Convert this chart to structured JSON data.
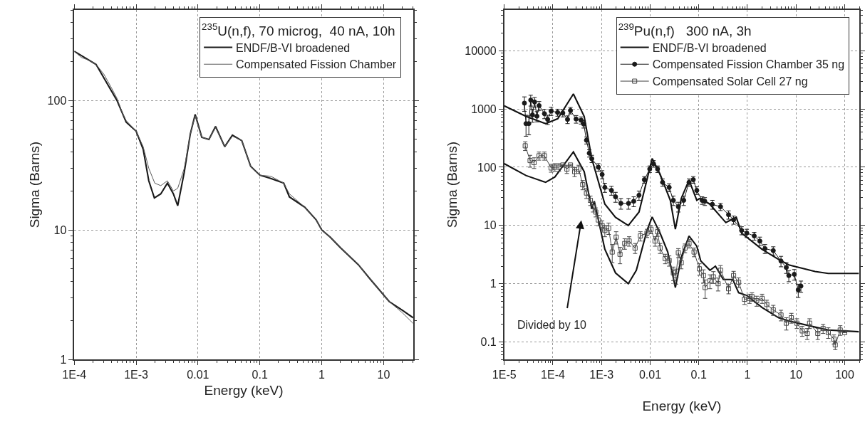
{
  "chart_data": [
    {
      "type": "line",
      "xlabel": "Energy (keV)",
      "ylabel": "Sigma (Barns)",
      "legend_title": "$^{235}$U(n,f), 70 microg,  40 nA, 10h",
      "legend": "top right",
      "log": "xy",
      "grid": true,
      "marker": "none",
      "line_style": "solid",
      "xlim": [
        0.0001,
        30
      ],
      "xticks": [
        {
          "value": 0.0001,
          "label": "1E-4"
        },
        {
          "value": 0.001,
          "label": "1E-3"
        },
        0.01,
        0.1,
        1,
        10
      ],
      "ylim": [
        1,
        500
      ],
      "yticks": [
        1,
        10,
        100
      ],
      "series": [
        {
          "name": "ENDF/B-VI broadened",
          "color": "#1a1a1a",
          "x": [
            0.0001,
            0.000225,
            0.00049,
            0.00069,
            0.001,
            0.0013,
            0.0016,
            0.00197,
            0.0025,
            0.0032,
            0.004,
            0.0047,
            0.006,
            0.0075,
            0.009,
            0.0115,
            0.015,
            0.0192,
            0.027,
            0.036,
            0.051,
            0.071,
            0.1,
            0.15,
            0.243,
            0.3,
            0.53,
            0.81,
            1,
            1.37,
            2,
            3.9,
            6,
            12.3,
            20,
            30
          ],
          "values": [
            240,
            190,
            100,
            68,
            58,
            42,
            24,
            17.7,
            19,
            23,
            19,
            15.4,
            28,
            55,
            78,
            52,
            50,
            63,
            44,
            54,
            49,
            31,
            26.5,
            25,
            23,
            18,
            15,
            12,
            10,
            8.8,
            7.3,
            5.4,
            4.2,
            2.8,
            2.4,
            2.1
          ]
        },
        {
          "name": "Compensated Fission Chamber",
          "color": "#5a5a5a",
          "x": [
            0.0001,
            0.00013,
            0.00017,
            0.000225,
            0.0003,
            0.0004,
            0.00049,
            0.0006,
            0.00069,
            0.001,
            0.0013,
            0.0016,
            0.002,
            0.0025,
            0.0032,
            0.004,
            0.0047,
            0.006,
            0.0075,
            0.009,
            0.0115,
            0.015,
            0.0192,
            0.027,
            0.036,
            0.051,
            0.071,
            0.1,
            0.15,
            0.243,
            0.3,
            0.53,
            0.81,
            1,
            1.37,
            2,
            3.9,
            6,
            12.3,
            20,
            30
          ],
          "values": [
            240,
            215,
            205,
            190,
            160,
            125,
            104,
            80,
            70,
            58,
            44,
            30,
            23,
            22,
            24,
            20,
            21,
            30,
            55,
            76,
            52,
            50,
            62,
            44,
            53,
            49,
            31,
            26.5,
            26,
            23,
            19,
            15,
            12,
            10,
            8.8,
            7.3,
            5.4,
            4.2,
            2.8,
            2.3,
            1.9
          ]
        }
      ]
    },
    {
      "type": "line",
      "xlabel": "Energy (keV)",
      "ylabel": "Sigma (Barns)",
      "legend_title": "$^{239}$Pu(n,f)   300 nA, 3h",
      "legend": "top right",
      "log": "xy",
      "grid": true,
      "line_style": "solid",
      "xlim": [
        1e-05,
        200
      ],
      "xticks": [
        {
          "value": 1e-05,
          "label": "1E-5"
        },
        {
          "value": 0.0001,
          "label": "1E-4"
        },
        {
          "value": 0.001,
          "label": "1E-3"
        },
        0.01,
        0.1,
        1,
        10,
        100
      ],
      "ylim": [
        0.05,
        50000
      ],
      "yticks": [
        0.1,
        1,
        10,
        100,
        1000,
        10000
      ],
      "annotations": [
        "Divided by 10"
      ],
      "series": [
        {
          "name": "ENDF/B-VI broadened",
          "color": "#111111",
          "marker": "none",
          "x": [
            1e-05,
            2.8e-05,
            7.1e-05,
            0.000126,
            0.000264,
            0.00044,
            0.00063,
            0.00117,
            0.00194,
            0.00355,
            0.0059,
            0.011,
            0.016,
            0.026,
            0.033,
            0.0436,
            0.063,
            0.091,
            0.105,
            0.17,
            0.36,
            0.59,
            0.76,
            2.0,
            4.4,
            7.1,
            24.6,
            46,
            195
          ],
          "values": [
            1130,
            747,
            560,
            680,
            1810,
            747,
            141,
            23.3,
            13.8,
            10,
            17,
            141,
            76,
            27,
            8.6,
            29,
            60,
            27,
            29,
            23,
            11.2,
            13.8,
            7.4,
            3.9,
            2.6,
            2.1,
            1.62,
            1.5,
            1.5
          ]
        },
        {
          "name": "Compensated Fission Chamber 35 ng",
          "color": "#1a1a1a",
          "marker": "circle",
          "x": [
            2.6e-05,
            2.8e-05,
            3.2e-05,
            3.5e-05,
            3.8e-05,
            4.2e-05,
            4.7e-05,
            5.2e-05,
            6.7e-05,
            7.8e-05,
            9.2e-05,
            0.000125,
            0.00016,
            0.0002,
            0.00023,
            0.0003,
            0.00038,
            0.00043,
            0.00049,
            0.00056,
            0.00063,
            0.00086,
            0.00103,
            0.00117,
            0.0016,
            0.00194,
            0.0025,
            0.0036,
            0.0046,
            0.0059,
            0.0076,
            0.0098,
            0.0117,
            0.0142,
            0.018,
            0.0246,
            0.03,
            0.038,
            0.049,
            0.063,
            0.077,
            0.091,
            0.117,
            0.133,
            0.19,
            0.28,
            0.41,
            0.52,
            0.76,
            0.97,
            1.38,
            1.8,
            2.3,
            3.4,
            4.9,
            6.3,
            7.1,
            9.2,
            11.1,
            12.6
          ],
          "values": [
            1260,
            560,
            560,
            1420,
            790,
            1320,
            750,
            1140,
            830,
            660,
            920,
            870,
            850,
            660,
            940,
            670,
            640,
            550,
            290,
            174,
            140,
            100,
            75,
            45,
            40,
            31,
            24,
            24,
            26,
            33,
            61,
            93,
            115,
            93,
            55,
            45,
            27,
            21,
            27,
            55,
            61,
            40,
            27,
            26,
            23,
            21,
            15.3,
            12.5,
            8.2,
            7.4,
            6.6,
            5.4,
            4,
            3.7,
            2.45,
            1.9,
            1.38,
            1.45,
            0.78,
            0.91
          ],
          "errors": [
            350,
            220,
            200,
            300,
            200,
            250,
            150,
            200,
            150,
            120,
            150,
            120,
            120,
            100,
            120,
            100,
            90,
            80,
            40,
            25,
            20,
            15,
            12,
            8,
            7,
            6,
            5,
            5,
            5,
            6,
            8,
            12,
            15,
            12,
            8,
            7,
            5,
            4,
            5,
            8,
            8,
            6,
            4,
            4,
            4,
            3,
            2.5,
            2,
            1.3,
            1.2,
            1,
            0.9,
            0.7,
            0.6,
            0.5,
            0.4,
            0.3,
            0.3,
            0.2,
            0.2
          ]
        },
        {
          "name": "Compensated Solar Cell 27 ng",
          "color": "#444444",
          "marker": "square",
          "x": [
            2.7e-05,
            3.4e-05,
            4.1e-05,
            5.2e-05,
            6.7e-05,
            9.2e-05,
            0.00011,
            0.000133,
            0.00016,
            0.000194,
            0.00023,
            0.00028,
            0.00034,
            0.00041,
            0.00049,
            0.00059,
            0.00067,
            0.00076,
            0.00086,
            0.00103,
            0.00117,
            0.0014,
            0.00166,
            0.002,
            0.0024,
            0.003,
            0.0037,
            0.0049,
            0.0063,
            0.0086,
            0.0104,
            0.0126,
            0.0142,
            0.016,
            0.0204,
            0.0246,
            0.03,
            0.034,
            0.038,
            0.0436,
            0.052,
            0.063,
            0.08,
            0.103,
            0.125,
            0.135,
            0.17,
            0.2,
            0.25,
            0.28,
            0.41,
            0.52,
            0.66,
            0.87,
            1.1,
            1.24,
            1.55,
            2,
            2.5,
            3.4,
            4.9,
            6.3,
            8,
            10.4,
            13.4,
            17,
            19,
            28,
            36,
            46,
            60,
            64,
            81,
            100
          ],
          "values": [
            233,
            130,
            120,
            157,
            157,
            97,
            100,
            100,
            109,
            93,
            109,
            84,
            93,
            50,
            36,
            27,
            21,
            17,
            12.4,
            10,
            8.2,
            9,
            3.5,
            6.3,
            3.2,
            4.9,
            5.4,
            4.1,
            6.6,
            7.4,
            8.6,
            5.4,
            7.8,
            4.1,
            2.7,
            2.5,
            1.53,
            1.38,
            3.4,
            2.3,
            4.1,
            4.9,
            3.5,
            1.8,
            1.38,
            0.86,
            1.12,
            1.31,
            1.0,
            1.7,
            0.82,
            1.38,
            1.06,
            0.54,
            0.56,
            0.6,
            0.51,
            0.56,
            0.44,
            0.355,
            0.29,
            0.21,
            0.26,
            0.21,
            0.155,
            0.14,
            0.21,
            0.14,
            0.17,
            0.145,
            0.112,
            0.089,
            0.16,
            0.145
          ],
          "errors": [
            40,
            30,
            25,
            25,
            25,
            15,
            15,
            15,
            null,
            15,
            null,
            15,
            15,
            9,
            7,
            5,
            4,
            3,
            2.5,
            2,
            1.8,
            2,
            1.2,
            1.5,
            1,
            1,
            1,
            0.8,
            1.2,
            1.2,
            1.4,
            1,
            1.3,
            0.8,
            0.5,
            0.5,
            0.4,
            0.4,
            0.6,
            0.5,
            0.7,
            0.8,
            0.6,
            0.4,
            0.35,
            0.3,
            0.3,
            0.3,
            0.25,
            0.35,
            0.15,
            0.25,
            0.2,
            0.1,
            0.1,
            0.1,
            0.1,
            0.1,
            0.08,
            0.07,
            0.06,
            0.05,
            0.05,
            0.04,
            0.03,
            0.03,
            0.04,
            0.03,
            0.03,
            0.03,
            0.02,
            0.015,
            0.03,
            null
          ]
        },
        {
          "color": "#111111",
          "marker": "none",
          "x": [
            1e-05,
            2.8e-05,
            7.1e-05,
            0.00011,
            0.000264,
            0.00044,
            0.00063,
            0.00071,
            0.00117,
            0.00194,
            0.00355,
            0.0052,
            0.0086,
            0.011,
            0.016,
            0.023,
            0.033,
            0.044,
            0.063,
            0.091,
            0.11,
            0.17,
            0.22,
            0.32,
            0.5,
            0.66,
            0.97,
            2.0,
            4.4,
            7.1,
            24.6,
            46,
            195
          ],
          "values": [
            115,
            72,
            55,
            68,
            183,
            84,
            19.5,
            26,
            3.9,
            1.53,
            1.0,
            1.7,
            8.2,
            14,
            7.4,
            3.5,
            0.86,
            2.9,
            6.6,
            4.4,
            2.45,
            1.7,
            2.0,
            1.18,
            1.18,
            0.7,
            0.63,
            0.39,
            0.26,
            0.23,
            0.18,
            0.16,
            0.15
          ]
        }
      ]
    }
  ]
}
